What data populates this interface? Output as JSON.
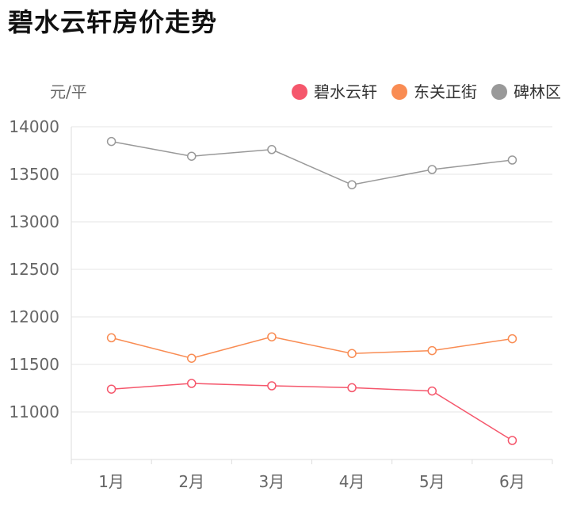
{
  "title": "碧水云轩房价走势",
  "chart_data": {
    "type": "line",
    "title": "碧水云轩房价走势",
    "ylabel": "元/平",
    "xlabel": "",
    "categories": [
      "1月",
      "2月",
      "3月",
      "4月",
      "5月",
      "6月"
    ],
    "ylim": [
      10500,
      14000
    ],
    "yticks": [
      11000,
      11500,
      12000,
      12500,
      13000,
      13500,
      14000
    ],
    "grid": true,
    "legend_position": "top-right",
    "series": [
      {
        "name": "碧水云轩",
        "color": "#f5576c",
        "values": [
          11240,
          11300,
          11275,
          11255,
          11220,
          10700
        ]
      },
      {
        "name": "东关正街",
        "color": "#f98c53",
        "values": [
          11780,
          11565,
          11790,
          11615,
          11645,
          11770
        ]
      },
      {
        "name": "碑林区",
        "color": "#999999",
        "values": [
          13845,
          13690,
          13760,
          13390,
          13550,
          13650
        ]
      }
    ]
  }
}
